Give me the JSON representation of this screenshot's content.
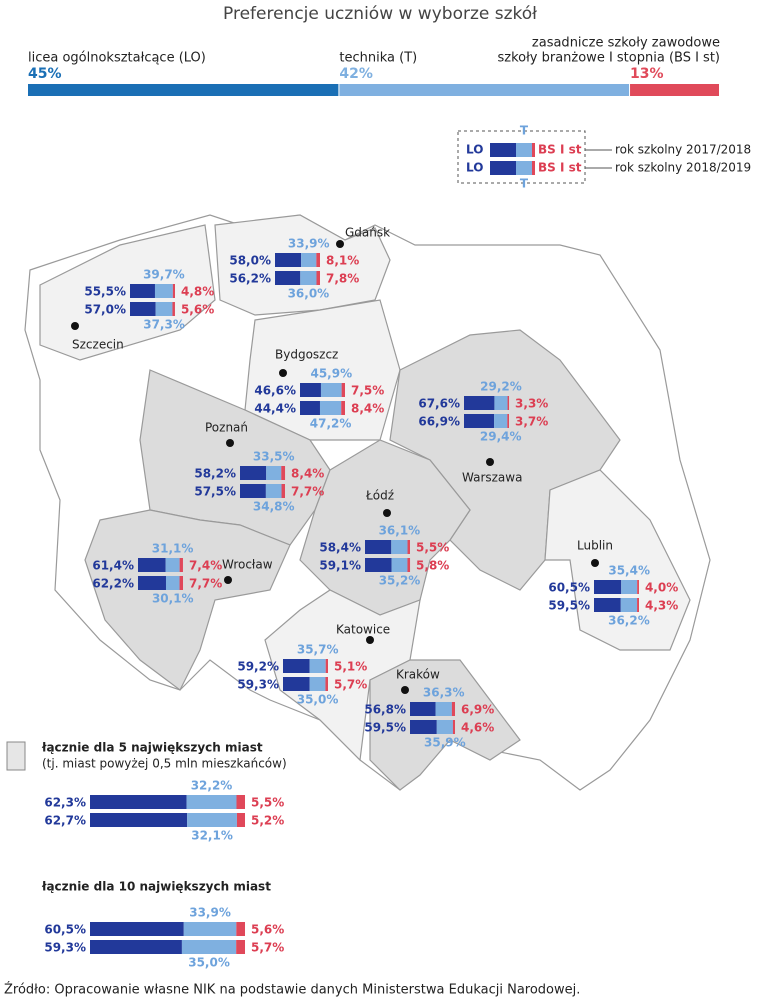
{
  "title": "Preferencje uczniów w wyborze szkół",
  "summary": {
    "segments": [
      {
        "lines": [
          "licea ogólnokształcące (LO)"
        ],
        "value": 45,
        "label": "45%",
        "color": "#1a6fb5"
      },
      {
        "lines": [
          "technika (T)"
        ],
        "value": 42,
        "label": "42%",
        "color": "#7fb0e0"
      },
      {
        "lines": [
          "zasadnicze szkoły zawodowe",
          "szkoły branżowe I stopnia (BS I st)"
        ],
        "value": 13,
        "label": "13%",
        "color": "#e04a5a"
      }
    ]
  },
  "colors": {
    "lo": "#22399a",
    "t": "#7fb0e0",
    "bs": "#e0485a"
  },
  "legend": {
    "lo": "LO",
    "t": "T",
    "bs": "BS I st",
    "years": [
      "rok szkolny 2017/2018",
      "rok szkolny 2018/2019"
    ]
  },
  "cities": [
    {
      "name": "Gdańsk",
      "years": [
        {
          "lo": {
            "value": 58.0,
            "label": "58,0%"
          },
          "t": {
            "value": 33.9,
            "label": "33,9%"
          },
          "bs": {
            "value": 8.1,
            "label": "8,1%"
          }
        },
        {
          "lo": {
            "value": 56.2,
            "label": "56,2%"
          },
          "t": {
            "value": 36.0,
            "label": "36,0%"
          },
          "bs": {
            "value": 7.8,
            "label": "7,8%"
          }
        }
      ]
    },
    {
      "name": "Szczecin",
      "years": [
        {
          "lo": {
            "value": 55.5,
            "label": "55,5%"
          },
          "t": {
            "value": 39.7,
            "label": "39,7%"
          },
          "bs": {
            "value": 4.8,
            "label": "4,8%"
          }
        },
        {
          "lo": {
            "value": 57.0,
            "label": "57,0%"
          },
          "t": {
            "value": 37.3,
            "label": "37,3%"
          },
          "bs": {
            "value": 5.6,
            "label": "5,6%"
          }
        }
      ]
    },
    {
      "name": "Bydgoszcz",
      "years": [
        {
          "lo": {
            "value": 46.6,
            "label": "46,6%"
          },
          "t": {
            "value": 45.9,
            "label": "45,9%"
          },
          "bs": {
            "value": 7.5,
            "label": "7,5%"
          }
        },
        {
          "lo": {
            "value": 44.4,
            "label": "44,4%"
          },
          "t": {
            "value": 47.2,
            "label": "47,2%"
          },
          "bs": {
            "value": 8.4,
            "label": "8,4%"
          }
        }
      ]
    },
    {
      "name": "Warszawa",
      "years": [
        {
          "lo": {
            "value": 67.6,
            "label": "67,6%"
          },
          "t": {
            "value": 29.2,
            "label": "29,2%"
          },
          "bs": {
            "value": 3.3,
            "label": "3,3%"
          }
        },
        {
          "lo": {
            "value": 66.9,
            "label": "66,9%"
          },
          "t": {
            "value": 29.4,
            "label": "29,4%"
          },
          "bs": {
            "value": 3.7,
            "label": "3,7%"
          }
        }
      ]
    },
    {
      "name": "Poznań",
      "years": [
        {
          "lo": {
            "value": 58.2,
            "label": "58,2%"
          },
          "t": {
            "value": 33.5,
            "label": "33,5%"
          },
          "bs": {
            "value": 8.4,
            "label": "8,4%"
          }
        },
        {
          "lo": {
            "value": 57.5,
            "label": "57,5%"
          },
          "t": {
            "value": 34.8,
            "label": "34,8%"
          },
          "bs": {
            "value": 7.7,
            "label": "7,7%"
          }
        }
      ]
    },
    {
      "name": "Łódź",
      "years": [
        {
          "lo": {
            "value": 58.4,
            "label": "58,4%"
          },
          "t": {
            "value": 36.1,
            "label": "36,1%"
          },
          "bs": {
            "value": 5.5,
            "label": "5,5%"
          }
        },
        {
          "lo": {
            "value": 59.1,
            "label": "59,1%"
          },
          "t": {
            "value": 35.2,
            "label": "35,2%"
          },
          "bs": {
            "value": 5.8,
            "label": "5,8%"
          }
        }
      ]
    },
    {
      "name": "Wrocław",
      "years": [
        {
          "lo": {
            "value": 61.4,
            "label": "61,4%"
          },
          "t": {
            "value": 31.1,
            "label": "31,1%"
          },
          "bs": {
            "value": 7.4,
            "label": "7,4%"
          }
        },
        {
          "lo": {
            "value": 62.2,
            "label": "62,2%"
          },
          "t": {
            "value": 30.1,
            "label": "30,1%"
          },
          "bs": {
            "value": 7.7,
            "label": "7,7%"
          }
        }
      ]
    },
    {
      "name": "Lublin",
      "years": [
        {
          "lo": {
            "value": 60.5,
            "label": "60,5%"
          },
          "t": {
            "value": 35.4,
            "label": "35,4%"
          },
          "bs": {
            "value": 4.0,
            "label": "4,0%"
          }
        },
        {
          "lo": {
            "value": 59.5,
            "label": "59,5%"
          },
          "t": {
            "value": 36.2,
            "label": "36,2%"
          },
          "bs": {
            "value": 4.3,
            "label": "4,3%"
          }
        }
      ]
    },
    {
      "name": "Katowice",
      "years": [
        {
          "lo": {
            "value": 59.2,
            "label": "59,2%"
          },
          "t": {
            "value": 35.7,
            "label": "35,7%"
          },
          "bs": {
            "value": 5.1,
            "label": "5,1%"
          }
        },
        {
          "lo": {
            "value": 59.3,
            "label": "59,3%"
          },
          "t": {
            "value": 35.0,
            "label": "35,0%"
          },
          "bs": {
            "value": 5.7,
            "label": "5,7%"
          }
        }
      ]
    },
    {
      "name": "Kraków",
      "years": [
        {
          "lo": {
            "value": 56.8,
            "label": "56,8%"
          },
          "t": {
            "value": 36.3,
            "label": "36,3%"
          },
          "bs": {
            "value": 6.9,
            "label": "6,9%"
          }
        },
        {
          "lo": {
            "value": 59.5,
            "label": "59,5%"
          },
          "t": {
            "value": 35.9,
            "label": "35,9%"
          },
          "bs": {
            "value": 4.6,
            "label": "4,6%"
          }
        }
      ]
    }
  ],
  "totals": [
    {
      "title": "łącznie dla 5 największych miast",
      "note": "(tj. miast powyżej 0,5 mln mieszkańców)",
      "years": [
        {
          "lo": {
            "value": 62.3,
            "label": "62,3%"
          },
          "t": {
            "value": 32.2,
            "label": "32,2%"
          },
          "bs": {
            "value": 5.5,
            "label": "5,5%"
          }
        },
        {
          "lo": {
            "value": 62.7,
            "label": "62,7%"
          },
          "t": {
            "value": 32.1,
            "label": "32,1%"
          },
          "bs": {
            "value": 5.2,
            "label": "5,2%"
          }
        }
      ]
    },
    {
      "title": "łącznie dla 10 największych miast",
      "years": [
        {
          "lo": {
            "value": 60.5,
            "label": "60,5%"
          },
          "t": {
            "value": 33.9,
            "label": "33,9%"
          },
          "bs": {
            "value": 5.6,
            "label": "5,6%"
          }
        },
        {
          "lo": {
            "value": 59.3,
            "label": "59,3%"
          },
          "t": {
            "value": 35.0,
            "label": "35,0%"
          },
          "bs": {
            "value": 5.7,
            "label": "5,7%"
          }
        }
      ]
    }
  ],
  "source": "Źródło: Opracowanie własne NIK na podstawie danych Ministerstwa Edukacji Narodowej."
}
